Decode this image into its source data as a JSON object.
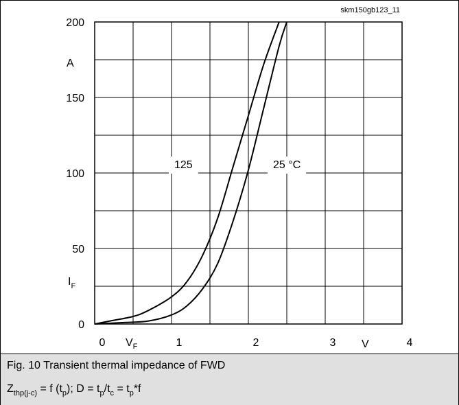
{
  "figure_id": "skm150gb123_11",
  "chart_data": {
    "type": "line",
    "xlim": [
      0,
      4
    ],
    "ylim": [
      0,
      200
    ],
    "x_ticks": [
      0,
      1,
      2,
      3,
      4
    ],
    "y_ticks": [
      0,
      50,
      100,
      150,
      200
    ],
    "grid": true,
    "x_unit": "V",
    "y_unit": "A",
    "x_symbol": {
      "main": "V",
      "sub": "F"
    },
    "y_symbol": {
      "main": "I",
      "sub": "F"
    },
    "series": [
      {
        "name": "125",
        "label": "125",
        "x": [
          0,
          0.2,
          0.5,
          0.7,
          1.0,
          1.2,
          1.4,
          1.6,
          1.8,
          2.0,
          2.2,
          2.4
        ],
        "y": [
          0,
          2,
          5,
          9,
          18,
          28,
          45,
          70,
          104,
          138,
          172,
          200
        ]
      },
      {
        "name": "25 °C",
        "label": "25 °C",
        "x": [
          0,
          0.4,
          0.7,
          1.0,
          1.2,
          1.4,
          1.6,
          1.8,
          2.0,
          2.2,
          2.4,
          2.5
        ],
        "y": [
          0,
          1,
          2,
          6,
          12,
          23,
          40,
          68,
          102,
          143,
          184,
          200
        ]
      }
    ]
  },
  "caption": {
    "line1": "Fig. 10 Transient thermal impedance of FWD",
    "line2": {
      "z": "Z",
      "z_sub": "thp(j-c)",
      "f_of": " = f (t",
      "p_sub1": "p",
      "d_eq": "); D = t",
      "p_sub2": "p",
      "slash_t": "/t",
      "c_sub": "c",
      "eq_t": " = t",
      "p_sub3": "p",
      "star_f": "*f"
    }
  }
}
